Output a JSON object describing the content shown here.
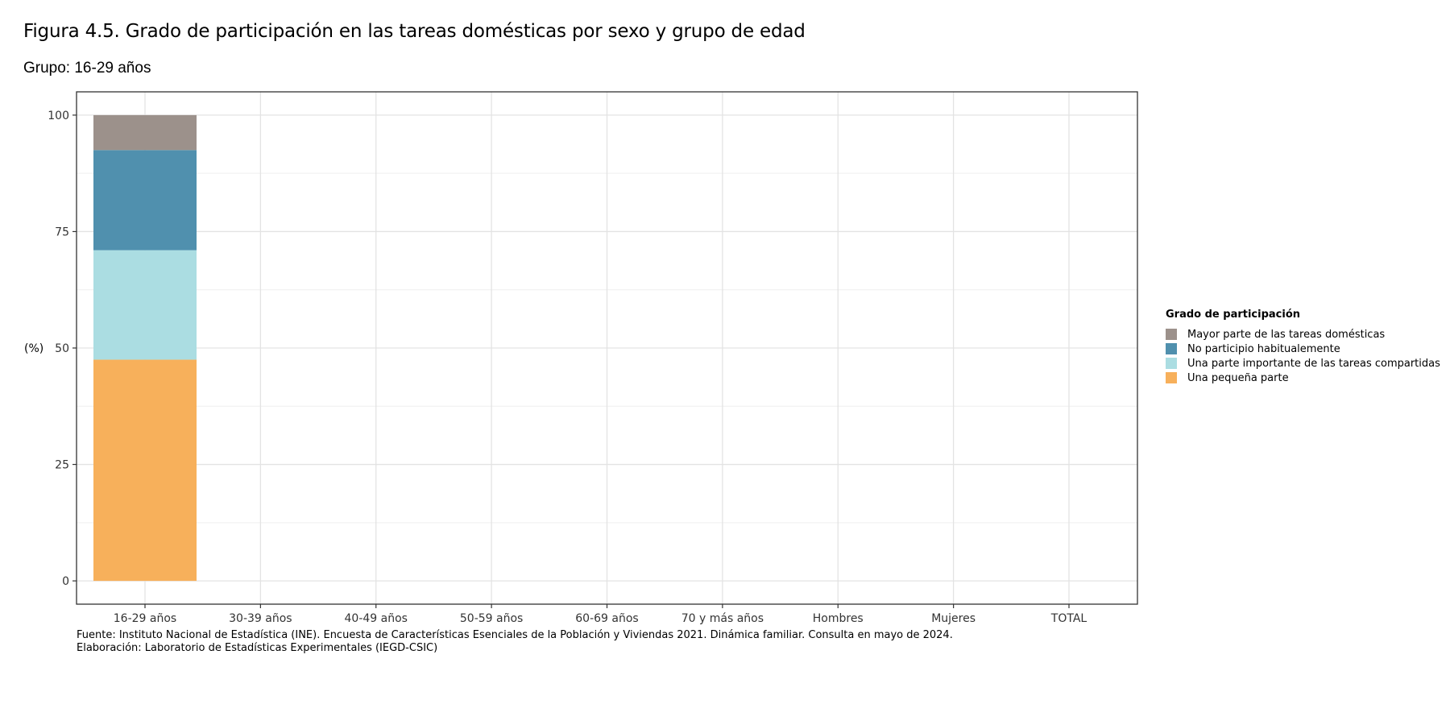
{
  "title": "Figura 4.5. Grado de participación en las tareas domésticas por sexo y grupo de edad",
  "subtitle": "Grupo: 16-29 años",
  "chart_data": {
    "type": "bar",
    "stacked": true,
    "categories": [
      "16-29 años",
      "30-39 años",
      "40-49 años",
      "50-59 años",
      "60-69 años",
      "70 y más años",
      "Hombres",
      "Mujeres",
      "TOTAL"
    ],
    "series": [
      {
        "name": "Una pequeña parte",
        "color": "#F7B05B",
        "values": [
          47.5,
          null,
          null,
          null,
          null,
          null,
          null,
          null,
          null
        ]
      },
      {
        "name": "Una parte importante de las tareas compartidas",
        "color": "#ABDDE2",
        "values": [
          23.5,
          null,
          null,
          null,
          null,
          null,
          null,
          null,
          null
        ]
      },
      {
        "name": "No participio habitualemente",
        "color": "#5090AE",
        "values": [
          21.5,
          null,
          null,
          null,
          null,
          null,
          null,
          null,
          null
        ]
      },
      {
        "name": "Mayor parte de las tareas domésticas",
        "color": "#9C918B",
        "values": [
          7.5,
          null,
          null,
          null,
          null,
          null,
          null,
          null,
          null
        ]
      }
    ],
    "ylabel": "(%)",
    "ylim": [
      -5,
      105
    ],
    "yticks": [
      0,
      25,
      50,
      75,
      100
    ],
    "grid": true,
    "legend_placement": "right"
  },
  "legend": {
    "title": "Grado de participación",
    "items": [
      {
        "label": "Mayor parte de las tareas domésticas",
        "color": "#9C918B"
      },
      {
        "label": "No participio habitualemente",
        "color": "#5090AE"
      },
      {
        "label": "Una parte importante de las tareas compartidas",
        "color": "#ABDDE2"
      },
      {
        "label": "Una pequeña parte",
        "color": "#F7B05B"
      }
    ]
  },
  "caption": {
    "source": "Fuente: Instituto Nacional de Estadística (INE). Encuesta de Características Esenciales de la Población y Viviendas 2021. Dinámica familiar. Consulta en mayo de 2024.",
    "credit": "Elaboración: Laboratorio de Estadísticas Experimentales (IEGD-CSIC)"
  }
}
